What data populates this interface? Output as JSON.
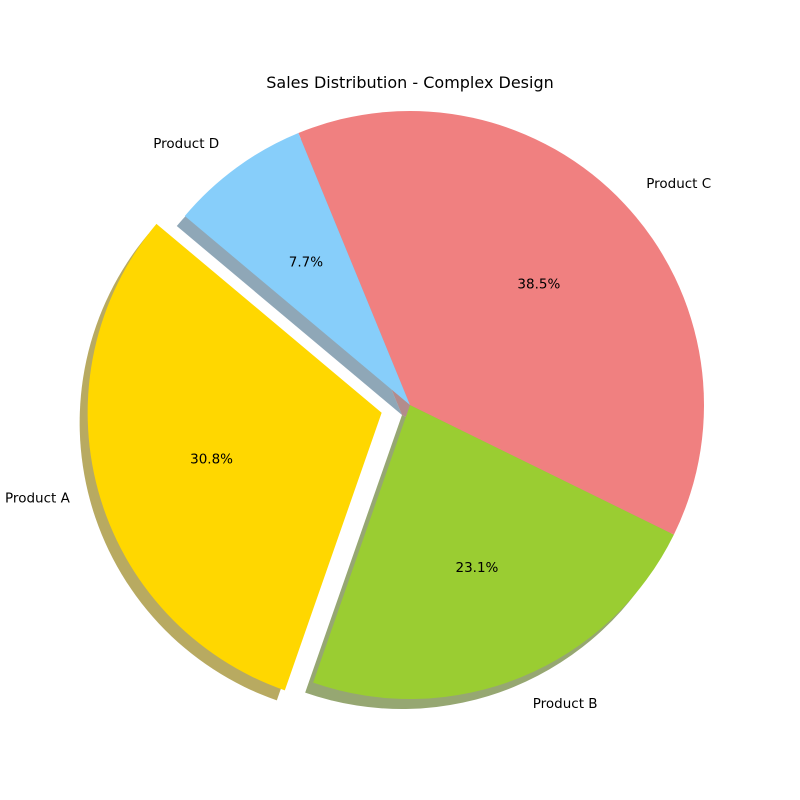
{
  "chart_data": {
    "type": "pie",
    "title": "Sales Distribution - Complex Design",
    "categories": [
      "Product A",
      "Product B",
      "Product C",
      "Product D"
    ],
    "values": [
      30.8,
      23.1,
      38.5,
      7.7
    ],
    "percent_labels": [
      "30.8%",
      "23.1%",
      "38.5%",
      "7.7%"
    ],
    "colors": [
      "#FFD700",
      "#9ACD32",
      "#F08080",
      "#87CEFA"
    ],
    "explode": [
      0.1,
      0,
      0,
      0
    ],
    "start_angle_deg": 140,
    "shadow": true,
    "legend": "none"
  }
}
